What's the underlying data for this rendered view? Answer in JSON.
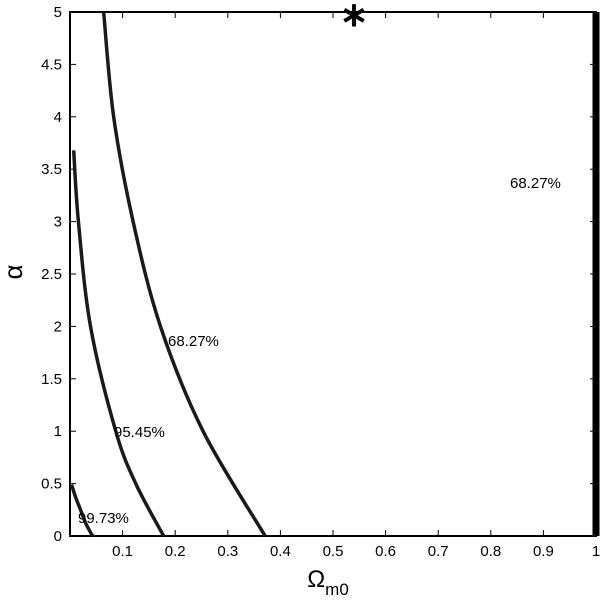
{
  "chart_data": {
    "type": "contour",
    "xlabel": {
      "main": "Ω",
      "sub": "m0"
    },
    "ylabel": "α",
    "xlim": [
      0,
      1
    ],
    "ylim": [
      0,
      5
    ],
    "xticks": [
      0.1,
      0.2,
      0.3,
      0.4,
      0.5,
      0.6,
      0.7,
      0.8,
      0.9,
      1
    ],
    "yticks": [
      0,
      0.5,
      1,
      1.5,
      2,
      2.5,
      3,
      3.5,
      4,
      4.5,
      5
    ],
    "grid": false,
    "series": [
      {
        "name": "99.73%",
        "color": "#1a1a1a",
        "x": [
          0.003,
          0.01,
          0.02,
          0.03,
          0.043
        ],
        "values": [
          0.49,
          0.38,
          0.25,
          0.12,
          0
        ]
      },
      {
        "name": "95.45%",
        "color": "#1a1a1a",
        "x": [
          0.007,
          0.016,
          0.039,
          0.087,
          0.125,
          0.178
        ],
        "values": [
          3.68,
          3,
          2,
          1,
          0.5,
          0
        ]
      },
      {
        "name": "68.27%",
        "color": "#1a1a1a",
        "x": [
          0.064,
          0.083,
          0.12,
          0.172,
          0.253,
          0.371
        ],
        "values": [
          5,
          4,
          3,
          2,
          1,
          0
        ]
      },
      {
        "name": "68.27%",
        "color": "#000000",
        "x": [
          1,
          1
        ],
        "values": [
          0,
          5
        ]
      }
    ],
    "best_fit": {
      "x": 0.54,
      "y": 5
    }
  }
}
